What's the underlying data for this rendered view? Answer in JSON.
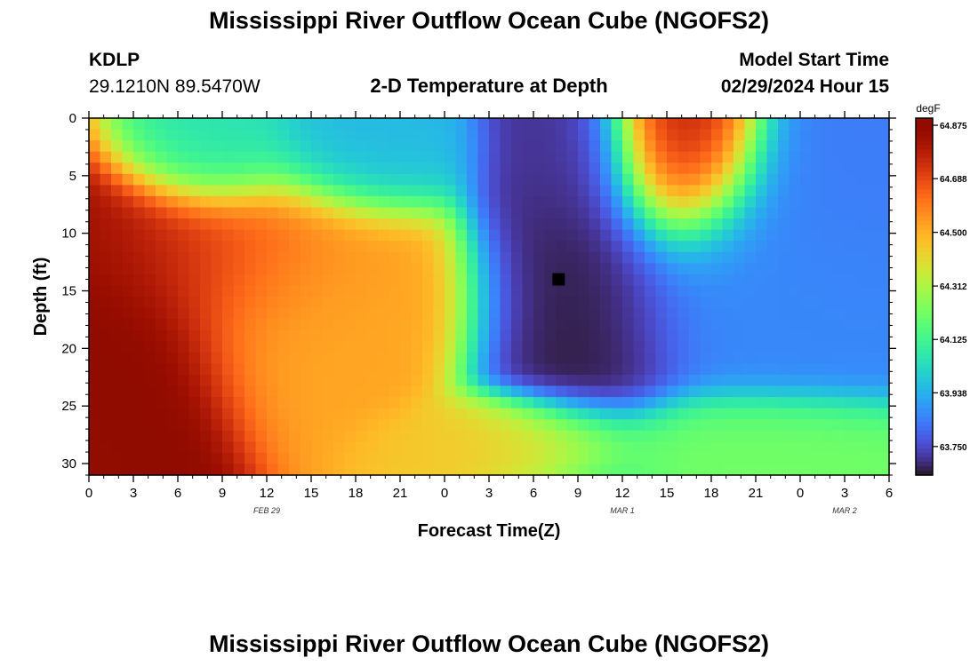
{
  "header": {
    "title": "Mississippi River Outflow Ocean Cube (NGOFS2)",
    "station_id": "KDLP",
    "station_coords": "29.1210N  89.5470W",
    "plot_name": "2-D Temperature at Depth",
    "model_start_label": "Model Start Time",
    "model_start_value": "02/29/2024 Hour 15"
  },
  "footer": {
    "title": "Mississippi River Outflow Ocean Cube (NGOFS2)"
  },
  "chart_data": {
    "type": "heatmap",
    "xlabel": "Forecast Time(Z)",
    "ylabel": "Depth (ft)",
    "x_tick_labels": [
      "0",
      "3",
      "6",
      "9",
      "12",
      "15",
      "18",
      "21",
      "0",
      "3",
      "6",
      "9",
      "12",
      "15",
      "18",
      "21",
      "0",
      "3",
      "6"
    ],
    "x_range_hours": [
      0,
      54
    ],
    "date_labels": [
      {
        "text": "FEB 29",
        "hour": 12
      },
      {
        "text": "MAR 1",
        "hour": 36
      },
      {
        "text": "MAR 2",
        "hour": 51
      }
    ],
    "y_tick_labels": [
      "0",
      "5",
      "10",
      "15",
      "20",
      "25",
      "30"
    ],
    "ylim": [
      0,
      31
    ],
    "y_inverted": true,
    "colorbar": {
      "unit": "degF",
      "min": 63.65,
      "max": 64.9,
      "tick_labels": [
        "64.875",
        "64.688",
        "64.500",
        "64.312",
        "64.125",
        "63.938",
        "63.750"
      ],
      "tick_values": [
        64.875,
        64.688,
        64.5,
        64.312,
        64.125,
        63.938,
        63.75
      ],
      "colormap": "turbo"
    },
    "marker": {
      "hour": 31.7,
      "depth": 14,
      "shape": "square",
      "color": "#000000"
    },
    "temperature_fields": [
      {
        "hour": 2,
        "depth": 17,
        "value": 64.9,
        "spread_h": 4.0,
        "spread_d": 6.0
      },
      {
        "hour": 7,
        "depth": 12,
        "value": 64.72,
        "spread_h": 5.0,
        "spread_d": 3.5
      },
      {
        "hour": 8,
        "depth": 3,
        "value": 64.05,
        "spread_h": 3.0,
        "spread_d": 2.8
      },
      {
        "hour": 19,
        "depth": 3,
        "value": 63.95,
        "spread_h": 3.5,
        "spread_d": 2.8
      },
      {
        "hour": 15,
        "depth": 15,
        "value": 64.52,
        "spread_h": 5.5,
        "spread_d": 5.0
      },
      {
        "hour": 33,
        "depth": 14,
        "value": 63.66,
        "spread_h": 3.5,
        "spread_d": 7.5
      },
      {
        "hour": 32,
        "depth": 4,
        "value": 63.72,
        "spread_h": 2.5,
        "spread_d": 4.0
      },
      {
        "hour": 46,
        "depth": 14,
        "value": 63.86,
        "spread_h": 5.5,
        "spread_d": 5.5
      },
      {
        "hour": 51,
        "depth": 6,
        "value": 63.84,
        "spread_h": 4.0,
        "spread_d": 5.0
      },
      {
        "hour": 40,
        "depth": 3,
        "value": 64.8,
        "spread_h": 2.8,
        "spread_d": 4.2
      },
      {
        "hour": 45,
        "depth": 29,
        "value": 64.22,
        "spread_h": 5.0,
        "spread_d": 2.5
      },
      {
        "hour": 29,
        "depth": 28,
        "value": 64.45,
        "spread_h": 4.0,
        "spread_d": 2.0
      }
    ]
  }
}
